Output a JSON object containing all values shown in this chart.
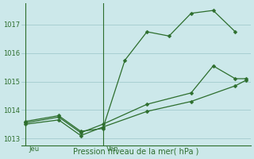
{
  "xlabel": "Pression niveau de la mer( hPa )",
  "bg_color": "#cce8ea",
  "grid_color": "#a8cfd2",
  "line_color": "#2d6e2d",
  "ylim": [
    1012.75,
    1017.75
  ],
  "yticks": [
    1013,
    1014,
    1015,
    1016,
    1017
  ],
  "xlim": [
    -0.2,
    10.2
  ],
  "jeu_x": 0,
  "ven_x": 3.5,
  "line1_x": [
    0.0,
    1.5,
    2.5,
    3.5,
    4.5,
    5.5,
    6.5,
    7.5,
    8.5,
    9.5
  ],
  "line1_y": [
    1013.6,
    1013.8,
    1013.25,
    1013.35,
    1015.75,
    1016.75,
    1016.6,
    1017.4,
    1017.5,
    1016.75
  ],
  "line2_x": [
    0.0,
    1.5,
    2.5,
    3.5,
    5.5,
    7.5,
    8.5,
    9.5,
    10.0
  ],
  "line2_y": [
    1013.55,
    1013.75,
    1013.2,
    1013.5,
    1014.2,
    1014.6,
    1015.55,
    1015.1,
    1015.1
  ],
  "line3_x": [
    0.0,
    1.5,
    2.5,
    3.5,
    5.5,
    7.5,
    9.5,
    10.0
  ],
  "line3_y": [
    1013.5,
    1013.65,
    1013.1,
    1013.4,
    1013.95,
    1014.3,
    1014.85,
    1015.05
  ]
}
